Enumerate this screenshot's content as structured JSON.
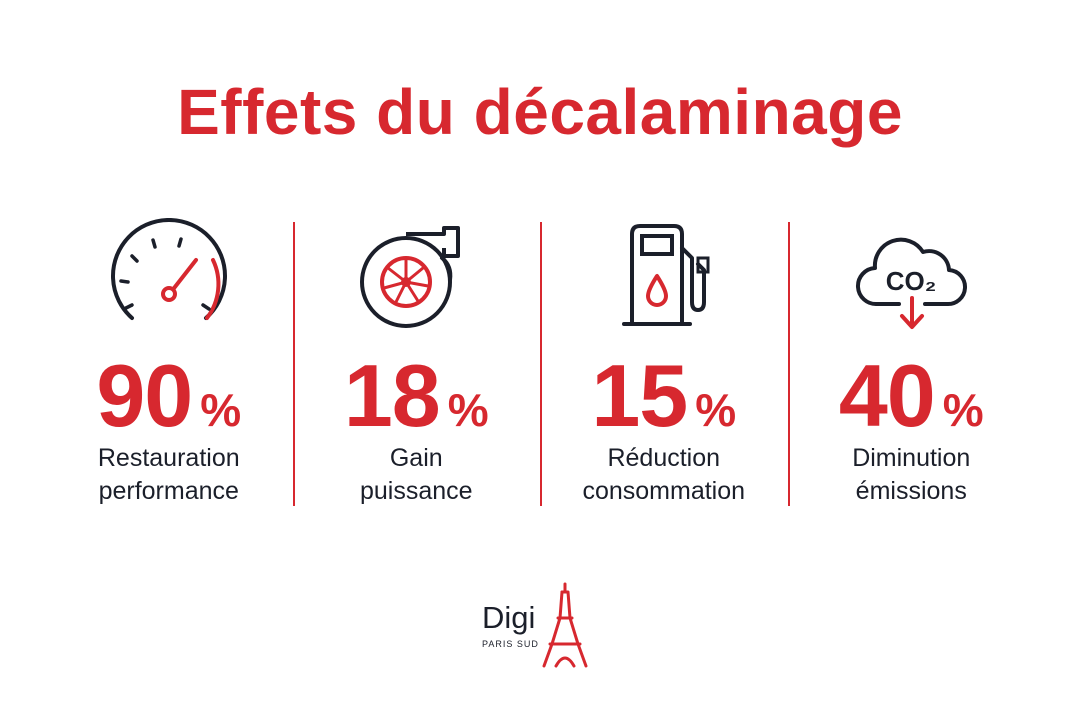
{
  "title": "Effets du décalaminage",
  "colors": {
    "accent": "#d7282f",
    "ink": "#1b1f2a",
    "background": "#ffffff"
  },
  "stats": [
    {
      "icon": "speedometer-icon",
      "value": "90",
      "unit": "%",
      "label_lines": [
        "Restauration",
        "performance"
      ]
    },
    {
      "icon": "turbocharger-icon",
      "value": "18",
      "unit": "%",
      "label_lines": [
        "Gain",
        "puissance"
      ]
    },
    {
      "icon": "fuel-pump-icon",
      "value": "15",
      "unit": "%",
      "label_lines": [
        "Réduction",
        "consommation"
      ]
    },
    {
      "icon": "co2-cloud-icon",
      "value": "40",
      "unit": "%",
      "label_lines": [
        "Diminution",
        "émissions"
      ],
      "icon_text": "CO₂"
    }
  ],
  "logo": {
    "wordmark": "Digi",
    "subtitle": "PARIS SUD",
    "icon": "eiffel-tower-icon"
  }
}
